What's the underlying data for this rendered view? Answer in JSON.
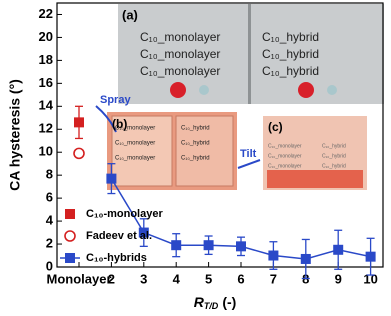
{
  "chart_data": {
    "type": "errorbar",
    "y_label": "CA hysteresis (°)",
    "x_label": {
      "main": "R",
      "sub": "T/D",
      "unit": "(-)"
    },
    "categories": [
      "Monolayer",
      "2",
      "3",
      "4",
      "5",
      "6",
      "7",
      "8",
      "9",
      "10"
    ],
    "ylim": [
      0,
      23
    ],
    "yticks": [
      0,
      2,
      4,
      6,
      8,
      10,
      12,
      14,
      16,
      18,
      20,
      22
    ],
    "legend": "lower left",
    "series": [
      {
        "name": "C₁₀-monolayer",
        "color": "#d42020",
        "marker": "square-filled",
        "values": [
          12.6,
          null,
          null,
          null,
          null,
          null,
          null,
          null,
          null,
          null
        ],
        "errors": [
          1.4,
          null,
          null,
          null,
          null,
          null,
          null,
          null,
          null,
          null
        ]
      },
      {
        "name": "Fadeev et al.",
        "color": "#d42020",
        "marker": "circle-open",
        "values": [
          9.9,
          null,
          null,
          null,
          null,
          null,
          null,
          null,
          null,
          null
        ]
      },
      {
        "name": "C₁₀-hybrids",
        "color": "#2a49c8",
        "marker": "square-filled",
        "line": true,
        "values": [
          null,
          7.7,
          3.0,
          1.9,
          1.9,
          1.8,
          1.0,
          0.7,
          1.5,
          0.9
        ],
        "errors": [
          null,
          1.3,
          1.2,
          1.0,
          0.8,
          0.8,
          1.2,
          1.7,
          1.7,
          1.6
        ]
      }
    ],
    "annotations": [
      "(a)",
      "(b)",
      "(c)",
      "Spray",
      "Tilt"
    ],
    "photo_labels": [
      "C₁₀_monolayer",
      "C₁₀_hybrid"
    ]
  }
}
